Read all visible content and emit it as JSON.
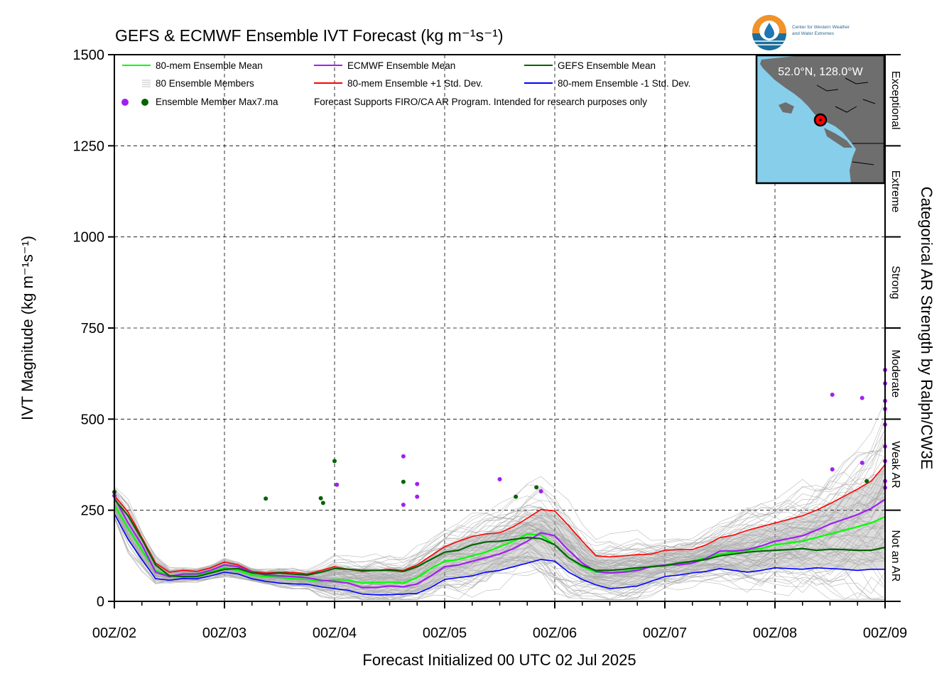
{
  "title": "GEFS & ECMWF Ensemble IVT Forecast (kg m⁻¹s⁻¹)",
  "logo": {
    "line1": "Center for Western Weather",
    "line2": "and Water Extremes",
    "colors": {
      "orange": "#f0932b",
      "blue": "#1f77b4",
      "dark": "#1b4f72"
    }
  },
  "inset": {
    "label": "52.0°N, 128.0°W",
    "ocean_color": "#87ceeb",
    "land_color": "#6e6e6e"
  },
  "notes": {
    "max_label": "Ensemble Member Max7.ma",
    "disclaimer": "Forecast Supports FIRO/CA AR Program. Intended for research purposes only"
  },
  "chart_data": {
    "type": "line",
    "title": "GEFS & ECMWF Ensemble IVT Forecast (kg m⁻¹s⁻¹)",
    "xlabel": "Forecast Initialized 00 UTC 02 Jul 2025",
    "ylabel": "IVT Magnitude (kg m⁻¹s⁻¹)",
    "ylabel_right": "Categorical AR Strength by Ralph/CW3E",
    "xlim": [
      0,
      168
    ],
    "ylim": [
      0,
      1500
    ],
    "grid": true,
    "legend_position": "top-left",
    "x_tick_labels": [
      {
        "x": 0,
        "label": "00Z/02"
      },
      {
        "x": 24,
        "label": "00Z/03"
      },
      {
        "x": 48,
        "label": "00Z/04"
      },
      {
        "x": 72,
        "label": "00Z/05"
      },
      {
        "x": 96,
        "label": "00Z/06"
      },
      {
        "x": 120,
        "label": "00Z/07"
      },
      {
        "x": 144,
        "label": "00Z/08"
      },
      {
        "x": 168,
        "label": "00Z/09"
      }
    ],
    "y_ticks": [
      0,
      250,
      500,
      750,
      1000,
      1250,
      1500
    ],
    "categories_right": [
      {
        "label": "Not an AR",
        "from": 0,
        "to": 250
      },
      {
        "label": "Weak AR",
        "from": 250,
        "to": 500
      },
      {
        "label": "Moderate",
        "from": 500,
        "to": 750
      },
      {
        "label": "Strong",
        "from": 750,
        "to": 1000
      },
      {
        "label": "Extreme",
        "from": 1000,
        "to": 1250
      },
      {
        "label": "Exceptional",
        "from": 1250,
        "to": 1500
      }
    ],
    "x": [
      0,
      3,
      6,
      9,
      12,
      15,
      18,
      21,
      24,
      27,
      30,
      33,
      36,
      39,
      42,
      45,
      48,
      51,
      54,
      57,
      60,
      63,
      66,
      69,
      72,
      75,
      78,
      81,
      84,
      87,
      90,
      93,
      96,
      99,
      102,
      105,
      108,
      111,
      114,
      117,
      120,
      123,
      126,
      129,
      132,
      135,
      138,
      141,
      144,
      147,
      150,
      153,
      156,
      159,
      162,
      165,
      168
    ],
    "series": [
      {
        "name": "80-mem Ensemble Mean",
        "color": "#00ff00",
        "width": 2.2,
        "values": [
          265,
          200,
          140,
          85,
          70,
          72,
          72,
          80,
          92,
          85,
          72,
          68,
          66,
          62,
          60,
          55,
          60,
          58,
          50,
          52,
          52,
          50,
          65,
          90,
          110,
          115,
          125,
          135,
          150,
          165,
          185,
          182,
          155,
          120,
          95,
          80,
          78,
          82,
          88,
          95,
          100,
          105,
          110,
          120,
          130,
          135,
          140,
          145,
          155,
          160,
          165,
          175,
          185,
          195,
          205,
          215,
          232
        ]
      },
      {
        "name": "ECMWF Ensemble Mean",
        "color": "#a020f0",
        "width": 2.2,
        "values": [
          285,
          215,
          155,
          80,
          68,
          75,
          75,
          85,
          100,
          95,
          80,
          72,
          70,
          68,
          65,
          58,
          55,
          50,
          38,
          38,
          42,
          40,
          48,
          70,
          95,
          100,
          110,
          120,
          130,
          145,
          165,
          188,
          180,
          140,
          105,
          82,
          78,
          80,
          85,
          95,
          100,
          100,
          105,
          118,
          138,
          138,
          142,
          152,
          165,
          172,
          180,
          195,
          212,
          225,
          238,
          255,
          280
        ]
      },
      {
        "name": "GEFS Ensemble Mean",
        "color": "#006400",
        "width": 2.2,
        "values": [
          280,
          235,
          170,
          100,
          70,
          68,
          68,
          78,
          88,
          90,
          78,
          75,
          78,
          75,
          72,
          80,
          90,
          88,
          85,
          85,
          85,
          82,
          95,
          115,
          135,
          140,
          155,
          163,
          165,
          170,
          175,
          172,
          155,
          120,
          98,
          85,
          85,
          88,
          92,
          95,
          98,
          105,
          110,
          115,
          125,
          130,
          135,
          138,
          140,
          142,
          145,
          140,
          143,
          142,
          140,
          140,
          148
        ]
      },
      {
        "name": "80-mem Ensemble +1 Std. Dev.",
        "color": "#ff0000",
        "width": 1.6,
        "values": [
          290,
          245,
          175,
          105,
          80,
          85,
          82,
          92,
          108,
          100,
          82,
          78,
          80,
          80,
          75,
          85,
          95,
          88,
          82,
          85,
          88,
          85,
          100,
          125,
          150,
          165,
          178,
          185,
          188,
          205,
          228,
          252,
          248,
          208,
          165,
          125,
          122,
          125,
          128,
          130,
          140,
          142,
          142,
          155,
          175,
          182,
          195,
          205,
          215,
          225,
          235,
          250,
          268,
          288,
          308,
          330,
          375
        ]
      },
      {
        "name": "80-mem Ensemble -1 Std. Dev.",
        "color": "#0000ff",
        "width": 1.6,
        "values": [
          240,
          170,
          115,
          62,
          58,
          63,
          62,
          70,
          80,
          75,
          62,
          55,
          50,
          48,
          47,
          40,
          35,
          30,
          20,
          18,
          18,
          20,
          22,
          38,
          60,
          65,
          70,
          80,
          85,
          95,
          105,
          115,
          110,
          80,
          60,
          45,
          35,
          38,
          42,
          55,
          68,
          72,
          78,
          82,
          90,
          85,
          80,
          85,
          92,
          90,
          88,
          92,
          90,
          88,
          85,
          88,
          88
        ]
      }
    ],
    "std_band": {
      "color": "#d3d3d3",
      "upper_series": "80-mem Ensemble +1 Std. Dev.",
      "lower_series": "80-mem Ensemble -1 Std. Dev."
    },
    "members": {
      "name": "80 Ensemble Members",
      "count": 80,
      "color": "#a9a9a9"
    },
    "max_points": [
      {
        "model": "GEFS",
        "color": "#006400",
        "points": [
          [
            0,
            300
          ],
          [
            33,
            282
          ],
          [
            45,
            283
          ],
          [
            45.5,
            270
          ],
          [
            48,
            385
          ],
          [
            63,
            328
          ],
          [
            87.5,
            287
          ],
          [
            92,
            313
          ],
          [
            164,
            330
          ]
        ]
      },
      {
        "model": "ECMWF",
        "color": "#a020f0",
        "points": [
          [
            0,
            290
          ],
          [
            48.5,
            320
          ],
          [
            63,
            398
          ],
          [
            66,
            322
          ],
          [
            63,
            265
          ],
          [
            66,
            287
          ],
          [
            84,
            335
          ],
          [
            93,
            302
          ],
          [
            156.5,
            567
          ],
          [
            156.5,
            362
          ],
          [
            163,
            558
          ],
          [
            163,
            380
          ],
          [
            168,
            635
          ],
          [
            168,
            598
          ],
          [
            168,
            550
          ],
          [
            168,
            528
          ],
          [
            168,
            485
          ],
          [
            168,
            425
          ],
          [
            168,
            385
          ],
          [
            168,
            330
          ],
          [
            168,
            312
          ]
        ]
      }
    ]
  }
}
